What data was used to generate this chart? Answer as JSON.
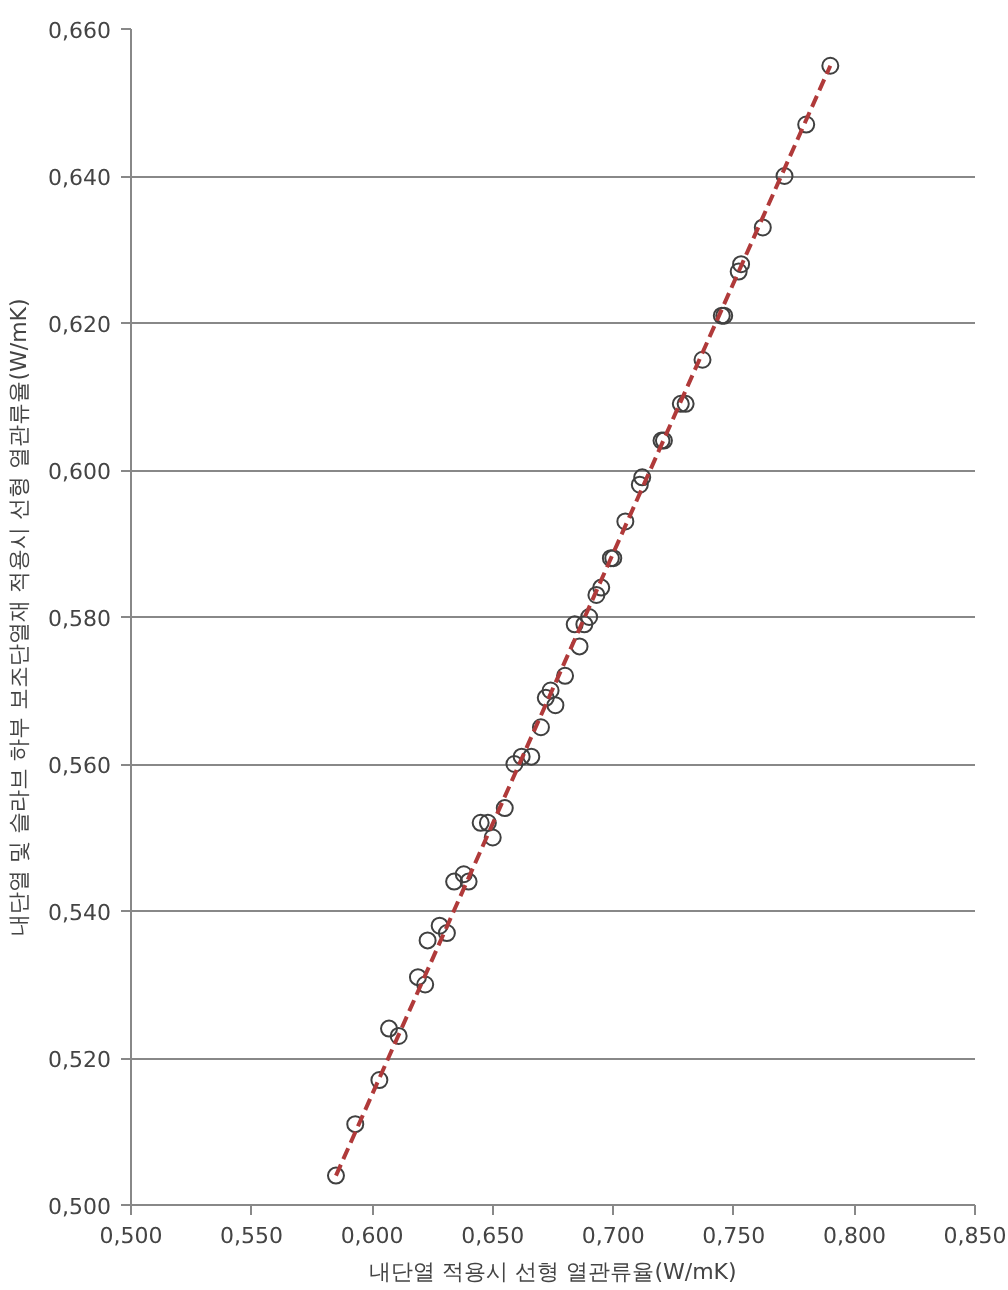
{
  "chart_data": {
    "type": "scatter",
    "xlabel": "내단열 적용시 선형 열관류율(W/mK)",
    "ylabel": "내단열 및 슬라브 하부 보조단열재 적용시 선형 열관류율(W/mK)",
    "xlim": [
      0.5,
      0.85
    ],
    "ylim": [
      0.5,
      0.66
    ],
    "xticks": [
      {
        "value": 0.5,
        "label": "0,500"
      },
      {
        "value": 0.55,
        "label": "0,550"
      },
      {
        "value": 0.6,
        "label": "0,600"
      },
      {
        "value": 0.65,
        "label": "0,650"
      },
      {
        "value": 0.7,
        "label": "0,700"
      },
      {
        "value": 0.75,
        "label": "0,750"
      },
      {
        "value": 0.8,
        "label": "0,800"
      },
      {
        "value": 0.85,
        "label": "0,850"
      }
    ],
    "yticks": [
      {
        "value": 0.5,
        "label": "0,500"
      },
      {
        "value": 0.52,
        "label": "0,520"
      },
      {
        "value": 0.54,
        "label": "0,540"
      },
      {
        "value": 0.56,
        "label": "0,560"
      },
      {
        "value": 0.58,
        "label": "0,580"
      },
      {
        "value": 0.6,
        "label": "0,600"
      },
      {
        "value": 0.62,
        "label": "0,620"
      },
      {
        "value": 0.64,
        "label": "0,640"
      },
      {
        "value": 0.66,
        "label": "0,660"
      }
    ],
    "grid": "y",
    "marker": "circle",
    "series": [
      {
        "color": "#404040",
        "x": [
          0.585,
          0.593,
          0.603,
          0.607,
          0.611,
          0.619,
          0.622,
          0.623,
          0.628,
          0.631,
          0.634,
          0.638,
          0.64,
          0.645,
          0.648,
          0.65,
          0.655,
          0.659,
          0.662,
          0.666,
          0.67,
          0.672,
          0.674,
          0.676,
          0.68,
          0.684,
          0.686,
          0.688,
          0.69,
          0.693,
          0.695,
          0.699,
          0.7,
          0.705,
          0.711,
          0.712,
          0.72,
          0.721,
          0.728,
          0.73,
          0.737,
          0.745,
          0.746,
          0.752,
          0.753,
          0.762,
          0.771,
          0.78,
          0.79
        ],
        "values": [
          0.504,
          0.511,
          0.517,
          0.524,
          0.523,
          0.531,
          0.53,
          0.536,
          0.538,
          0.537,
          0.544,
          0.545,
          0.544,
          0.552,
          0.552,
          0.55,
          0.554,
          0.56,
          0.561,
          0.561,
          0.565,
          0.569,
          0.57,
          0.568,
          0.572,
          0.579,
          0.576,
          0.579,
          0.58,
          0.583,
          0.584,
          0.588,
          0.588,
          0.593,
          0.598,
          0.599,
          0.604,
          0.604,
          0.609,
          0.609,
          0.615,
          0.621,
          0.621,
          0.627,
          0.628,
          0.633,
          0.64,
          0.647,
          0.655
        ]
      },
      {
        "type": "line",
        "color": "#b03a3a",
        "line_style": "dashed",
        "marker": "none",
        "x": [
          0.585,
          0.79
        ],
        "values": [
          0.504,
          0.655
        ]
      }
    ]
  }
}
